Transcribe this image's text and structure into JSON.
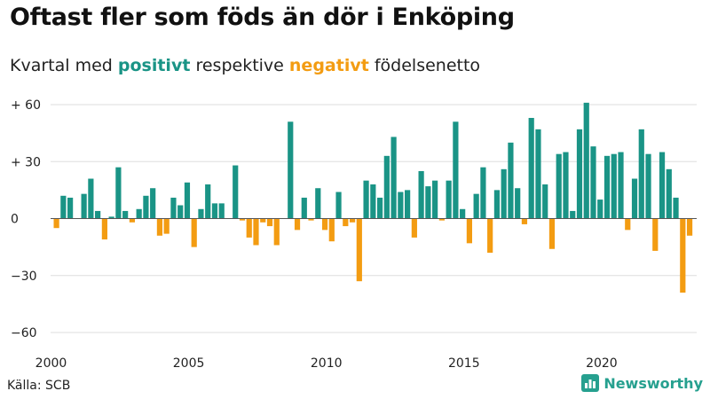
{
  "header": {
    "title": "Oftast fler som föds än dör i Enköping",
    "subtitle_pre": "Kvartal med ",
    "subtitle_pos": "positivt",
    "subtitle_mid": " respektive ",
    "subtitle_neg": "negativt",
    "subtitle_post": " födelsenetto"
  },
  "footer": {
    "source": "Källa: SCB",
    "brand": "Newsworthy"
  },
  "colors": {
    "positive": "#1a9486",
    "negative": "#f39c12",
    "grid": "#dddddd",
    "zero_line": "#555555",
    "brand": "#26a08f"
  },
  "chart_data": {
    "type": "bar",
    "x_start": "2000 Q1",
    "frequency": "quarterly",
    "ylim": [
      -60,
      60
    ],
    "yticks": [
      60,
      30,
      0,
      -30,
      -60
    ],
    "ytick_labels": [
      "+ 60",
      "+ 30",
      "0",
      "−30",
      "−60"
    ],
    "xticks": [
      "2000",
      "2005",
      "2010",
      "2015",
      "2020"
    ],
    "grid": true,
    "legend": "none",
    "values": [
      -5,
      12,
      11,
      0,
      13,
      21,
      4,
      -11,
      1,
      27,
      4,
      -2,
      5,
      12,
      16,
      -9,
      -8,
      11,
      7,
      19,
      -15,
      5,
      18,
      8,
      8,
      0,
      28,
      -1,
      -10,
      -14,
      -2,
      -4,
      -14,
      0,
      51,
      -6,
      11,
      -1,
      16,
      -6,
      -12,
      14,
      -4,
      -2,
      -33,
      20,
      18,
      11,
      33,
      43,
      14,
      15,
      -10,
      25,
      17,
      20,
      -1,
      20,
      51,
      5,
      -13,
      13,
      27,
      -18,
      15,
      26,
      40,
      16,
      -3,
      53,
      47,
      18,
      -16,
      34,
      35,
      4,
      47,
      61,
      38,
      10,
      33,
      34,
      35,
      -6,
      21,
      47,
      34,
      -17,
      35,
      26,
      11,
      -39,
      -9
    ]
  }
}
